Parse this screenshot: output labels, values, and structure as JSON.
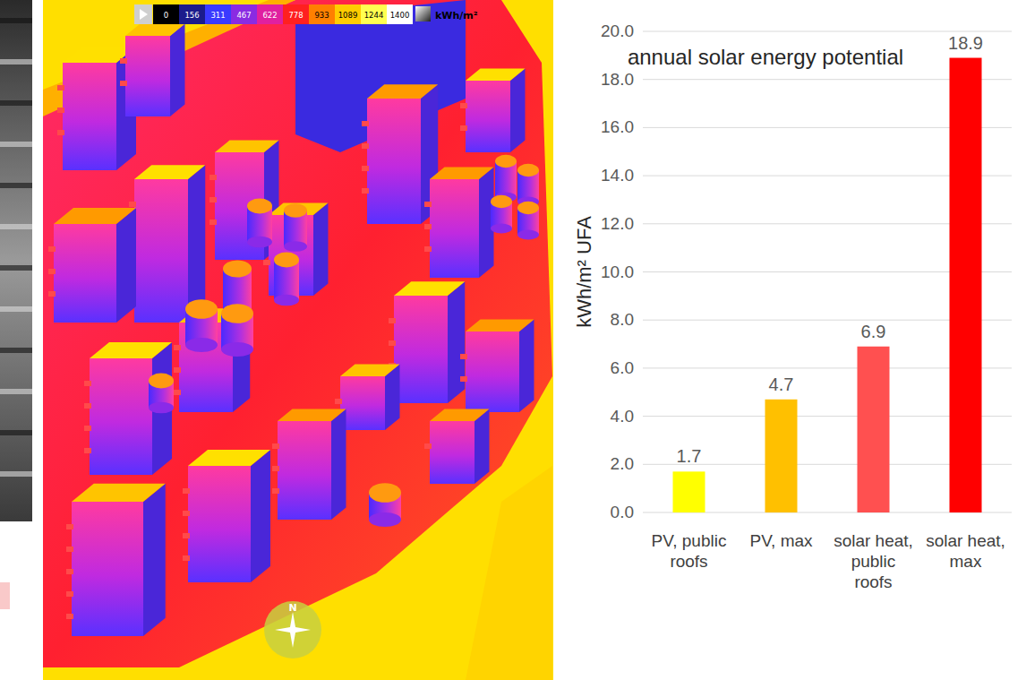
{
  "chart_data": {
    "type": "bar",
    "title": "annual solar energy potential",
    "y_label": "kWh/m² UFA",
    "categories": [
      "PV, public roofs",
      "PV, max",
      "solar heat, public roofs",
      "solar heat, max"
    ],
    "values": [
      1.7,
      4.7,
      6.9,
      18.9
    ],
    "colors": [
      "#ffff00",
      "#ffc000",
      "#ff5050",
      "#ff0000"
    ],
    "ylim": [
      0,
      20
    ],
    "yticks": [
      {
        "value": 0,
        "label": "0.0"
      },
      {
        "value": 2,
        "label": "2.0"
      },
      {
        "value": 4,
        "label": "4.0"
      },
      {
        "value": 6,
        "label": "6.0"
      },
      {
        "value": 8,
        "label": "8.0"
      },
      {
        "value": 10,
        "label": "10.0"
      },
      {
        "value": 12,
        "label": "12.0"
      },
      {
        "value": 14,
        "label": "14.0"
      },
      {
        "value": 16,
        "label": "16.0"
      },
      {
        "value": 18,
        "label": "18.0"
      },
      {
        "value": 20,
        "label": "20.0"
      }
    ],
    "grid": true,
    "data_labels": true
  },
  "render_panel": {
    "colorbar": {
      "ticks": [
        0,
        156,
        311,
        467,
        622,
        778,
        933,
        1089,
        1244,
        1400
      ],
      "colors": [
        "#000000",
        "#1c1c8c",
        "#3a3aff",
        "#8a2be2",
        "#e020a0",
        "#ff2020",
        "#ff8000",
        "#ffcc00",
        "#ffff50",
        "#ffffff"
      ],
      "unit": "kWh/m²"
    },
    "compass_label": "N"
  }
}
